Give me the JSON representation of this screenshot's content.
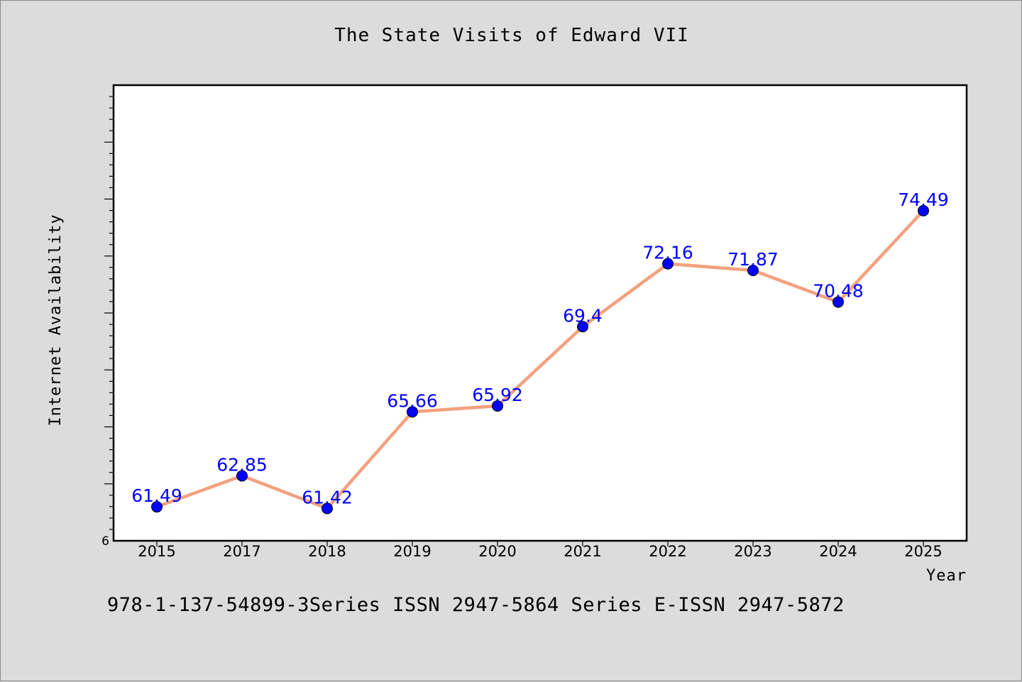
{
  "title": "The State Visits of Edward VII",
  "footer": "978-1-137-54899-3Series ISSN 2947-5864 Series E-ISSN 2947-5872",
  "chart_data": {
    "type": "line",
    "title": "The State Visits of Edward VII",
    "xlabel": "Year",
    "ylabel": "Internet Availability",
    "categories": [
      "2015",
      "2017",
      "2018",
      "2019",
      "2020",
      "2021",
      "2022",
      "2023",
      "2024",
      "2025"
    ],
    "series": [
      {
        "values": [
          61.49,
          62.85,
          61.42,
          65.66,
          65.92,
          69.4,
          72.16,
          71.87,
          70.48,
          74.49
        ],
        "data_labels": [
          "61.49",
          "62.85",
          "61.42",
          "65.66",
          "65.92",
          "69.4",
          "72.16",
          "71.87",
          "70.48",
          "74.49"
        ],
        "line_color": "#f4a07e",
        "marker_color": "#0000ff"
      }
    ],
    "ylim": [
      60,
      80
    ],
    "y_tick_labels": [
      "6"
    ],
    "grid": false,
    "legend": "none"
  }
}
